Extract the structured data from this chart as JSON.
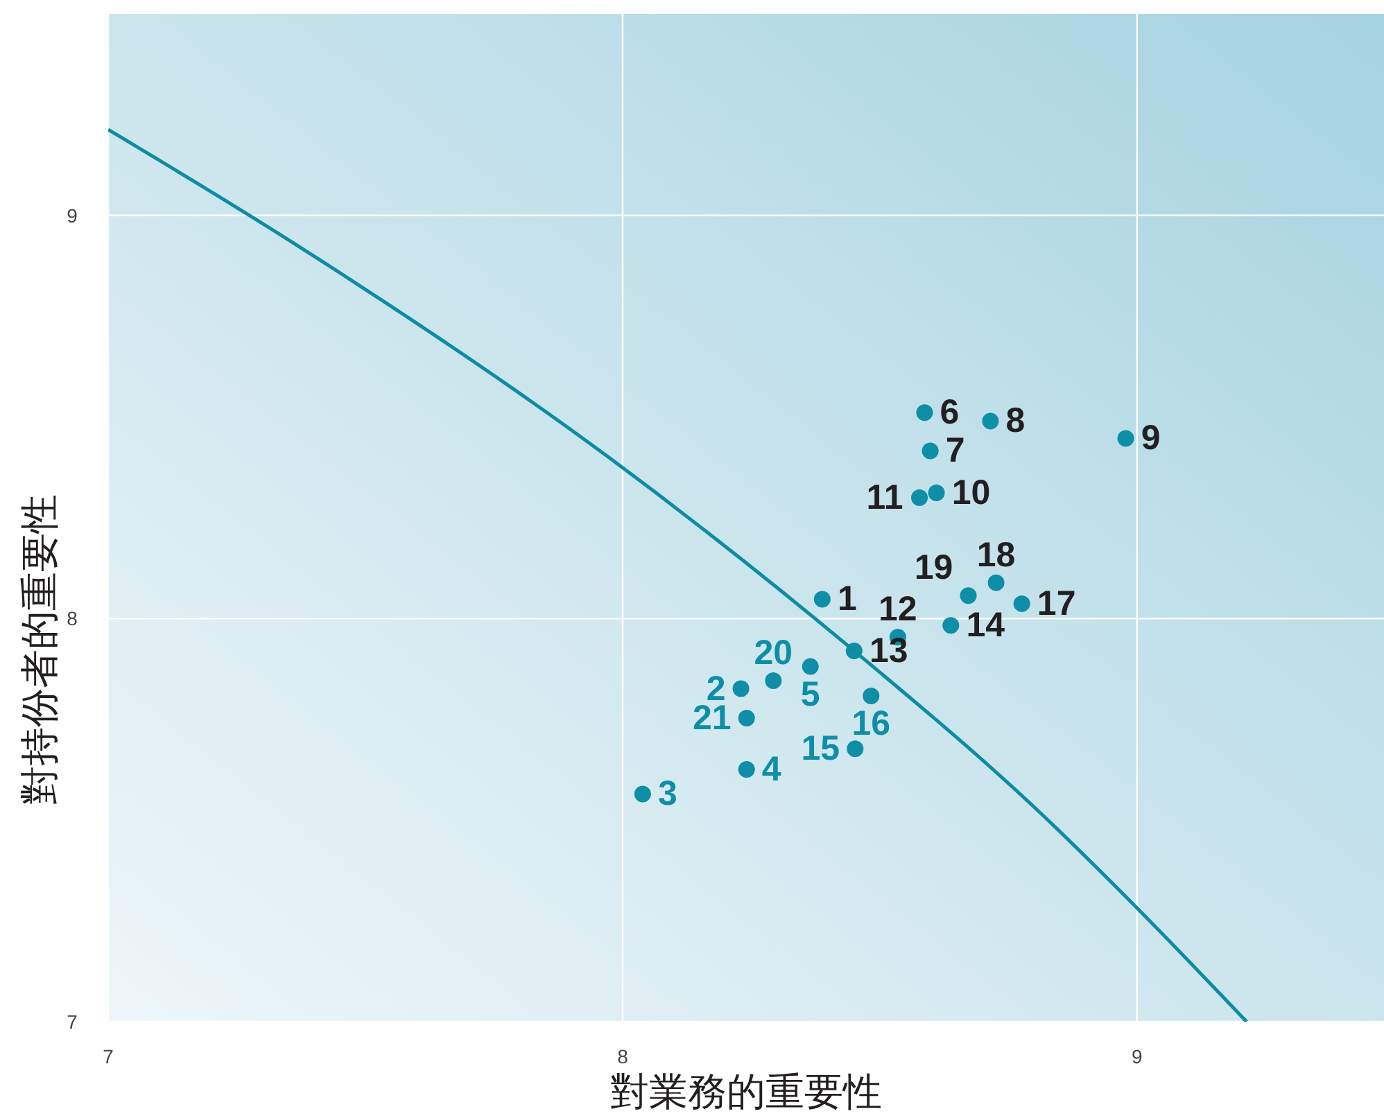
{
  "chart_data": {
    "type": "scatter",
    "xlabel": "對業務的重要性",
    "ylabel": "對持份者的重要性",
    "xlim": [
      7,
      9.48
    ],
    "ylim": [
      7,
      9.5
    ],
    "xticks": [
      7,
      8,
      9
    ],
    "yticks": [
      7,
      8,
      9
    ],
    "grid": true,
    "marker": "circle",
    "series": [
      {
        "color": "#0f8ea8",
        "x": [
          8.388,
          8.587,
          8.598,
          8.715,
          8.978,
          8.61,
          8.577,
          8.535,
          8.638,
          8.672,
          8.726,
          8.776,
          8.45
        ],
        "values": [
          8.048,
          8.511,
          8.416,
          8.49,
          8.447,
          8.312,
          8.3,
          7.954,
          7.983,
          8.057,
          8.089,
          8.037,
          7.92
        ]
      },
      {
        "color": "#0f8ea8",
        "x": [
          8.23,
          8.293,
          8.365,
          8.241,
          8.483,
          8.452,
          8.241,
          8.039
        ],
        "values": [
          7.826,
          7.846,
          7.881,
          7.753,
          7.808,
          7.677,
          7.626,
          7.565
        ]
      },
      {
        "type": "line",
        "color": "#0e8ca3",
        "marker": "none",
        "x": [
          7.0,
          7.331,
          7.974,
          8.45,
          8.817,
          9.0,
          9.213
        ],
        "values": [
          9.213,
          8.955,
          8.399,
          7.92,
          7.512,
          7.282,
          7.0
        ]
      }
    ],
    "annotations": [
      {
        "text": "1",
        "x": 8.388,
        "y": 8.048
      },
      {
        "text": "6",
        "x": 8.587,
        "y": 8.511
      },
      {
        "text": "7",
        "x": 8.598,
        "y": 8.416
      },
      {
        "text": "8",
        "x": 8.715,
        "y": 8.49
      },
      {
        "text": "9",
        "x": 8.978,
        "y": 8.447
      },
      {
        "text": "10",
        "x": 8.61,
        "y": 8.312
      },
      {
        "text": "11",
        "x": 8.577,
        "y": 8.3
      },
      {
        "text": "12",
        "x": 8.535,
        "y": 7.954
      },
      {
        "text": "14",
        "x": 8.638,
        "y": 7.983
      },
      {
        "text": "19",
        "x": 8.672,
        "y": 8.057
      },
      {
        "text": "18",
        "x": 8.726,
        "y": 8.089
      },
      {
        "text": "17",
        "x": 8.776,
        "y": 8.037
      },
      {
        "text": "13",
        "x": 8.45,
        "y": 7.92
      },
      {
        "text": "2",
        "x": 8.23,
        "y": 7.826
      },
      {
        "text": "20",
        "x": 8.293,
        "y": 7.846
      },
      {
        "text": "5",
        "x": 8.365,
        "y": 7.881
      },
      {
        "text": "21",
        "x": 8.241,
        "y": 7.753
      },
      {
        "text": "16",
        "x": 8.483,
        "y": 7.808
      },
      {
        "text": "15",
        "x": 8.452,
        "y": 7.677
      },
      {
        "text": "4",
        "x": 8.241,
        "y": 7.626
      },
      {
        "text": "3",
        "x": 8.039,
        "y": 7.565
      }
    ]
  }
}
